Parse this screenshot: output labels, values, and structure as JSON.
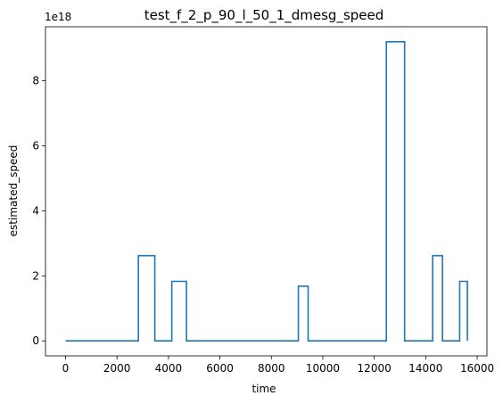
{
  "chart_data": {
    "type": "line",
    "title": "test_f_2_p_90_l_50_1_dmesg_speed",
    "xlabel": "time",
    "ylabel": "estimated_speed",
    "y_offset_label": "1e18",
    "xlim": [
      -780,
      16380
    ],
    "ylim": [
      -0.46,
      9.66
    ],
    "x_ticks": [
      0,
      2000,
      4000,
      6000,
      8000,
      10000,
      12000,
      14000,
      16000
    ],
    "x_tick_labels": [
      "0",
      "2000",
      "4000",
      "6000",
      "8000",
      "10000",
      "12000",
      "14000",
      "16000"
    ],
    "y_ticks": [
      0,
      2,
      4,
      6,
      8
    ],
    "y_tick_labels": [
      "0",
      "2",
      "4",
      "6",
      "8"
    ],
    "grid": false,
    "series": [
      {
        "color": "#1f77b4",
        "drawstyle": "steps",
        "x": [
          0,
          2830,
          2830,
          3470,
          3470,
          4130,
          4130,
          4700,
          4700,
          9050,
          9050,
          9430,
          9430,
          12470,
          12470,
          13180,
          13180,
          14270,
          14270,
          14650,
          14650,
          15320,
          15320,
          15620,
          15620
        ],
        "y": [
          0,
          0,
          2.62,
          2.62,
          0,
          0,
          1.83,
          1.83,
          0,
          0,
          1.68,
          1.68,
          0,
          0,
          9.2,
          9.2,
          0,
          0,
          2.62,
          2.62,
          0,
          0,
          1.83,
          1.83,
          0
        ]
      }
    ]
  }
}
